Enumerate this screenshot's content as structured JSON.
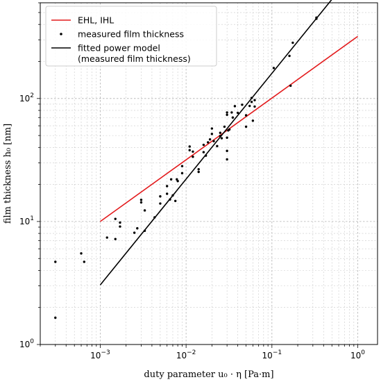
{
  "chart_data": {
    "type": "scatter",
    "xlabel": "duty parameter u₀ · η [Pa·m]",
    "ylabel": "film thickness h₀ [nm]",
    "x_scale": "log",
    "y_scale": "log",
    "xlim": [
      0.0002,
      1.7
    ],
    "ylim": [
      1,
      600
    ],
    "x_ticks": [
      {
        "value": 0.001,
        "base": "10",
        "exp": "−3"
      },
      {
        "value": 0.01,
        "base": "10",
        "exp": "−2"
      },
      {
        "value": 0.1,
        "base": "10",
        "exp": "−1"
      },
      {
        "value": 1,
        "base": "10",
        "exp": "0"
      }
    ],
    "y_ticks": [
      {
        "value": 1,
        "base": "10",
        "exp": "0"
      },
      {
        "value": 10,
        "base": "10",
        "exp": "1"
      },
      {
        "value": 100,
        "base": "10",
        "exp": "2"
      }
    ],
    "grid": true,
    "legend_position": "top-left",
    "legend": [
      {
        "label": "EHL, IHL",
        "color": "#e31a1c",
        "marker": "line"
      },
      {
        "label": "measured film thickness",
        "color": "#000000",
        "marker": "dot"
      },
      {
        "label": "fitted power model",
        "label_line2": "(measured film thickness)",
        "color": "#000000",
        "marker": "line"
      }
    ],
    "series": [
      {
        "name": "EHL, IHL",
        "kind": "line",
        "color": "#e31a1c",
        "points": [
          [
            0.001,
            10
          ],
          [
            1,
            320
          ]
        ]
      },
      {
        "name": "fitted power model",
        "kind": "line",
        "color": "#000000",
        "points": [
          [
            0.001,
            3.05
          ],
          [
            0.5,
            640
          ]
        ]
      },
      {
        "name": "measured film thickness",
        "kind": "scatter",
        "color": "#000000",
        "points": [
          [
            0.0003,
            4.7
          ],
          [
            0.0003,
            1.65
          ],
          [
            0.0006,
            5.5
          ],
          [
            0.00065,
            4.7
          ],
          [
            0.0012,
            7.4
          ],
          [
            0.0015,
            10.5
          ],
          [
            0.0015,
            7.2
          ],
          [
            0.0017,
            9.8
          ],
          [
            0.0017,
            9.1
          ],
          [
            0.0025,
            8.1
          ],
          [
            0.0027,
            8.8
          ],
          [
            0.003,
            14.3
          ],
          [
            0.003,
            15.0
          ],
          [
            0.0033,
            12.3
          ],
          [
            0.0033,
            8.4
          ],
          [
            0.0043,
            10.8
          ],
          [
            0.005,
            16.0
          ],
          [
            0.005,
            14.0
          ],
          [
            0.006,
            19.4
          ],
          [
            0.006,
            16.8
          ],
          [
            0.0065,
            15.1
          ],
          [
            0.0067,
            22.0
          ],
          [
            0.007,
            16.3
          ],
          [
            0.0075,
            14.7
          ],
          [
            0.0078,
            22.0
          ],
          [
            0.008,
            21.3
          ],
          [
            0.009,
            24.7
          ],
          [
            0.009,
            28.2
          ],
          [
            0.011,
            38.0
          ],
          [
            0.011,
            40.7
          ],
          [
            0.012,
            33.6
          ],
          [
            0.012,
            37.0
          ],
          [
            0.014,
            25.3
          ],
          [
            0.014,
            26.6
          ],
          [
            0.016,
            36.6
          ],
          [
            0.016,
            42.0
          ],
          [
            0.017,
            34.3
          ],
          [
            0.018,
            44.0
          ],
          [
            0.019,
            46.5
          ],
          [
            0.02,
            51.5
          ],
          [
            0.02,
            57.0
          ],
          [
            0.021,
            45.0
          ],
          [
            0.023,
            41.0
          ],
          [
            0.025,
            52.6
          ],
          [
            0.025,
            49.6
          ],
          [
            0.026,
            47.5
          ],
          [
            0.028,
            59.0
          ],
          [
            0.03,
            73.7
          ],
          [
            0.03,
            77.0
          ],
          [
            0.03,
            48.0
          ],
          [
            0.03,
            37.5
          ],
          [
            0.03,
            32.0
          ],
          [
            0.031,
            55.0
          ],
          [
            0.032,
            56.0
          ],
          [
            0.034,
            77.0
          ],
          [
            0.035,
            70.0
          ],
          [
            0.037,
            86.6
          ],
          [
            0.04,
            76.5
          ],
          [
            0.045,
            89.0
          ],
          [
            0.05,
            73.0
          ],
          [
            0.05,
            59.0
          ],
          [
            0.055,
            87.0
          ],
          [
            0.058,
            101.0
          ],
          [
            0.058,
            93.8
          ],
          [
            0.06,
            66.0
          ],
          [
            0.063,
            97.0
          ],
          [
            0.063,
            86.0
          ],
          [
            0.105,
            177.0
          ],
          [
            0.16,
            222.0
          ],
          [
            0.165,
            127.0
          ],
          [
            0.175,
            284.0
          ],
          [
            0.33,
            455.0
          ],
          [
            0.33,
            445.0
          ]
        ]
      }
    ]
  }
}
